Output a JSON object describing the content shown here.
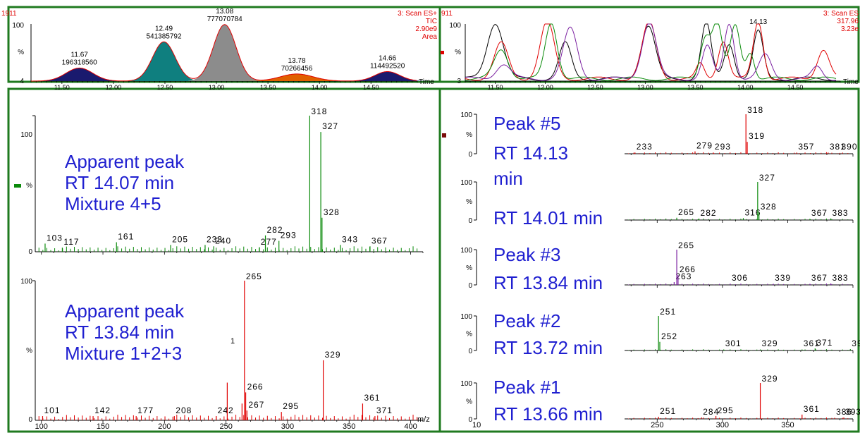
{
  "colors": {
    "frame": "#1f7a1f",
    "header": "#e00000",
    "annotation": "#1f1fd0",
    "green": "#0a8a0a",
    "red": "#e00000",
    "purple": "#7a1fa0",
    "black": "#000000"
  },
  "top_left": {
    "header_left": "1911",
    "header_right": "3: Scan ES+",
    "header_right_2": "TIC",
    "header_right_3": "2.90e9",
    "header_right_4": "Area",
    "y_top": "100",
    "y_mid": "%",
    "y_bottom": "4",
    "xlabel": "Time"
  },
  "top_right": {
    "header_left": "911",
    "header_right": "3: Scan ES",
    "header_right_2": "317.96",
    "header_right_3": "3.23e",
    "y_top": "100",
    "y_mid": "%",
    "y_bottom": "3",
    "xlabel": "Time",
    "peak_label": "14.13"
  },
  "left_spectra": [
    {
      "annotation": [
        "Apparent peak",
        "RT 14.07 min",
        "Mixture 4+5"
      ],
      "y_top": "100",
      "y_mid": "%",
      "y_bottom": "0",
      "extra": ""
    },
    {
      "annotation": [
        "Apparent peak",
        "RT 13.84 min",
        "Mixture 1+2+3"
      ],
      "y_top": "100",
      "y_mid": "%",
      "y_bottom": "0",
      "extra": "1",
      "xlabel": "m/z"
    }
  ],
  "right_spectra": [
    {
      "annotation": [
        "Peak #5",
        "RT 14.13"
      ]
    },
    {
      "annotation": [
        "min",
        "RT 14.01 min"
      ]
    },
    {
      "annotation": [
        "Peak #3",
        "RT 13.84 min"
      ]
    },
    {
      "annotation": [
        "Peak #2",
        "RT 13.72 min"
      ]
    },
    {
      "annotation": [
        "Peak #1",
        "RT 13.66 min"
      ]
    }
  ],
  "chart_data": [
    {
      "type": "area",
      "title": "",
      "xlabel": "Time",
      "xlim": [
        11.2,
        14.95
      ],
      "ylim": [
        4,
        100
      ],
      "x_ticks": [
        "11.50",
        "12.00",
        "12.50",
        "13.00",
        "13.50",
        "14.00",
        "14.50"
      ],
      "x_tick_values": [
        11.5,
        12.0,
        12.5,
        13.0,
        13.5,
        14.0,
        14.5
      ],
      "peaks": [
        {
          "rt": 11.67,
          "area": 196318560,
          "label": "11.67",
          "area_label": "196318560",
          "height": 22,
          "width": 0.13,
          "color": "#1a1a6e"
        },
        {
          "rt": 12.49,
          "area": 541385792,
          "label": "12.49",
          "area_label": "541385792",
          "height": 66,
          "width": 0.11,
          "color": "#0f7f7f"
        },
        {
          "rt": 13.08,
          "area": 777070784,
          "label": "13.08",
          "area_label": "777070784",
          "height": 95,
          "width": 0.11,
          "color": "#8c8c8c"
        },
        {
          "rt": 13.78,
          "area": 70266456,
          "label": "13.78",
          "area_label": "70266456",
          "height": 12,
          "width": 0.16,
          "color": "#e06000"
        },
        {
          "rt": 14.66,
          "area": 114492520,
          "label": "14.66",
          "area_label": "114492520",
          "height": 16,
          "width": 0.12,
          "color": "#1a1a6e"
        }
      ]
    },
    {
      "type": "line",
      "title": "",
      "xlabel": "Time",
      "xlim": [
        11.2,
        14.95
      ],
      "ylim": [
        3,
        100
      ],
      "x_ticks": [
        "11.50",
        "12.00",
        "12.50",
        "13.00",
        "13.50",
        "14.00",
        "14.50"
      ],
      "x_tick_values": [
        11.5,
        12.0,
        12.5,
        13.0,
        13.5,
        14.0,
        14.5
      ],
      "series": [
        {
          "color": "#000000",
          "peaks": [
            [
              11.5,
              95,
              0.08
            ],
            [
              12.2,
              60,
              0.06
            ],
            [
              13.03,
              90,
              0.07
            ],
            [
              13.61,
              94,
              0.05
            ],
            [
              13.84,
              60,
              0.05
            ],
            [
              14.13,
              80,
              0.05
            ]
          ]
        },
        {
          "color": "#e00000",
          "peaks": [
            [
              11.56,
              60,
              0.07
            ],
            [
              12.02,
              97,
              0.07
            ],
            [
              13.04,
              96,
              0.07
            ],
            [
              13.55,
              25,
              0.04
            ],
            [
              13.78,
              65,
              0.05
            ],
            [
              14.13,
              97,
              0.05
            ],
            [
              14.78,
              50,
              0.06
            ]
          ]
        },
        {
          "color": "#0a8a0a",
          "peaks": [
            [
              11.56,
              50,
              0.07
            ],
            [
              12.06,
              96,
              0.06
            ],
            [
              13.6,
              70,
              0.05
            ],
            [
              13.72,
              93,
              0.05
            ],
            [
              13.9,
              90,
              0.05
            ],
            [
              14.05,
              45,
              0.04
            ]
          ]
        },
        {
          "color": "#7a1fa0",
          "peaks": [
            [
              11.58,
              25,
              0.07
            ],
            [
              12.25,
              85,
              0.07
            ],
            [
              13.04,
              97,
              0.07
            ],
            [
              13.62,
              55,
              0.05
            ],
            [
              13.84,
              94,
              0.05
            ],
            [
              14.2,
              40,
              0.06
            ],
            [
              14.72,
              20,
              0.05
            ]
          ]
        }
      ]
    },
    {
      "type": "bar",
      "title": "Apparent peak RT 14.07 min Mixture 4+5",
      "xlim": [
        95,
        410
      ],
      "ylim": [
        0,
        100
      ],
      "color": "#0a8a0a",
      "peaks": [
        [
          103,
          6,
          "103"
        ],
        [
          117,
          3,
          "117"
        ],
        [
          161,
          7,
          "161"
        ],
        [
          205,
          5,
          "205"
        ],
        [
          233,
          5,
          "233"
        ],
        [
          240,
          4,
          "240"
        ],
        [
          277,
          3,
          "277"
        ],
        [
          282,
          12,
          "282"
        ],
        [
          293,
          8,
          "293"
        ],
        [
          318,
          100,
          "318"
        ],
        [
          327,
          88,
          "327"
        ],
        [
          328,
          25,
          "328"
        ],
        [
          343,
          5,
          "343"
        ],
        [
          367,
          4,
          "367"
        ]
      ]
    },
    {
      "type": "bar",
      "title": "Apparent peak RT 13.84 min Mixture 1+2+3",
      "xlabel": "m/z",
      "xlim": [
        95,
        410
      ],
      "ylim": [
        0,
        100
      ],
      "color": "#e00000",
      "x_ticks": [
        "100",
        "150",
        "200",
        "250",
        "300",
        "350",
        "400"
      ],
      "x_tick_values": [
        100,
        150,
        200,
        250,
        300,
        350,
        400
      ],
      "peaks": [
        [
          101,
          3,
          "101"
        ],
        [
          142,
          3,
          "142"
        ],
        [
          177,
          3,
          "177"
        ],
        [
          208,
          3,
          "208"
        ],
        [
          242,
          3,
          "242"
        ],
        [
          251,
          27,
          ""
        ],
        [
          263,
          12,
          ""
        ],
        [
          265,
          100,
          "265"
        ],
        [
          266,
          20,
          "266"
        ],
        [
          267,
          7,
          "267"
        ],
        [
          295,
          6,
          "295"
        ],
        [
          329,
          43,
          "329"
        ],
        [
          361,
          12,
          "361"
        ],
        [
          371,
          3,
          "371"
        ]
      ]
    },
    {
      "type": "bar",
      "title": "Peak #5 RT 14.13 min",
      "xlim": [
        225,
        400
      ],
      "ylim": [
        0,
        100
      ],
      "color": "#e00000",
      "peaks": [
        [
          233,
          3,
          "233"
        ],
        [
          279,
          6,
          "279"
        ],
        [
          293,
          3,
          "293"
        ],
        [
          318,
          100,
          "318"
        ],
        [
          319,
          30,
          "319"
        ],
        [
          357,
          3,
          "357"
        ],
        [
          381,
          3,
          "381"
        ],
        [
          390,
          2,
          "390"
        ]
      ]
    },
    {
      "type": "bar",
      "title": "RT 14.01 min",
      "xlim": [
        225,
        400
      ],
      "ylim": [
        0,
        100
      ],
      "color": "#0a8a0a",
      "peaks": [
        [
          265,
          6,
          "265"
        ],
        [
          282,
          4,
          "282"
        ],
        [
          316,
          5,
          "316"
        ],
        [
          327,
          100,
          "327"
        ],
        [
          328,
          20,
          "328"
        ],
        [
          367,
          3,
          "367"
        ],
        [
          383,
          4,
          "383"
        ]
      ]
    },
    {
      "type": "bar",
      "title": "Peak #3 RT 13.84 min",
      "xlim": [
        225,
        400
      ],
      "ylim": [
        0,
        100
      ],
      "color": "#7a1fa0",
      "peaks": [
        [
          263,
          8,
          "263"
        ],
        [
          265,
          100,
          "265"
        ],
        [
          266,
          28,
          "266"
        ],
        [
          306,
          3,
          "306"
        ],
        [
          339,
          3,
          "339"
        ],
        [
          367,
          3,
          "367"
        ],
        [
          383,
          4,
          "383"
        ]
      ]
    },
    {
      "type": "bar",
      "title": "Peak #2 RT 13.72 min",
      "xlim": [
        225,
        400
      ],
      "ylim": [
        0,
        100
      ],
      "color": "#0a8a0a",
      "peaks": [
        [
          251,
          100,
          "251"
        ],
        [
          252,
          25,
          "252"
        ],
        [
          301,
          3,
          "301"
        ],
        [
          329,
          3,
          "329"
        ],
        [
          361,
          3,
          "361"
        ],
        [
          371,
          6,
          "371"
        ],
        [
          398,
          4,
          "398"
        ]
      ]
    },
    {
      "type": "bar",
      "title": "Peak #1 RT 13.66 min",
      "xlim": [
        225,
        400
      ],
      "ylim": [
        0,
        100
      ],
      "color": "#e00000",
      "x_ticks": [
        "250",
        "300",
        "350"
      ],
      "x_tick_values": [
        250,
        300,
        350
      ],
      "peaks": [
        [
          251,
          6,
          "251"
        ],
        [
          284,
          4,
          "284"
        ],
        [
          295,
          8,
          "295"
        ],
        [
          329,
          100,
          "329"
        ],
        [
          361,
          12,
          "361"
        ],
        [
          386,
          3,
          "386"
        ],
        [
          393,
          4,
          "393"
        ]
      ]
    }
  ]
}
